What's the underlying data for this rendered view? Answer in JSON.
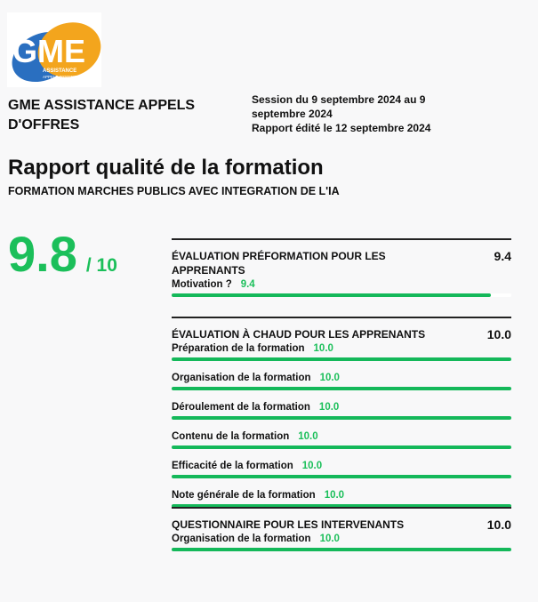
{
  "logo": {
    "text": "GME",
    "sub1": "ASSISTANCE",
    "sub2": "APPELS D'OFFRES"
  },
  "org_name": "GME ASSISTANCE APPELS D'OFFRES",
  "session": {
    "line1": "Session du 9 septembre 2024 au 9 septembre 2024",
    "line2": "Rapport édité le 12 septembre 2024"
  },
  "title": "Rapport qualité de la formation",
  "subtitle": "FORMATION MARCHES PUBLICS AVEC INTEGRATION DE L'IA",
  "score": {
    "value": "9.8",
    "max": "/ 10"
  },
  "sections": [
    {
      "title": "ÉVALUATION PRÉFORMATION POUR LES APPRENANTS",
      "score": "9.4",
      "items": [
        {
          "label": "Motivation ?",
          "value": "9.4",
          "pct": 94
        }
      ]
    },
    {
      "title": "ÉVALUATION À CHAUD POUR LES APPRENANTS",
      "score": "10.0",
      "items": [
        {
          "label": "Préparation de la formation",
          "value": "10.0",
          "pct": 100
        },
        {
          "label": "Organisation de la formation",
          "value": "10.0",
          "pct": 100
        },
        {
          "label": "Déroulement de la formation",
          "value": "10.0",
          "pct": 100
        },
        {
          "label": "Contenu de la formation",
          "value": "10.0",
          "pct": 100
        },
        {
          "label": "Efficacité de la formation",
          "value": "10.0",
          "pct": 100
        },
        {
          "label": "Note générale de la formation",
          "value": "10.0",
          "pct": 100
        }
      ]
    },
    {
      "title": "QUESTIONNAIRE POUR LES INTERVENANTS",
      "score": "10.0",
      "items": [
        {
          "label": "Organisation de la formation",
          "value": "10.0",
          "pct": 100
        }
      ]
    }
  ]
}
